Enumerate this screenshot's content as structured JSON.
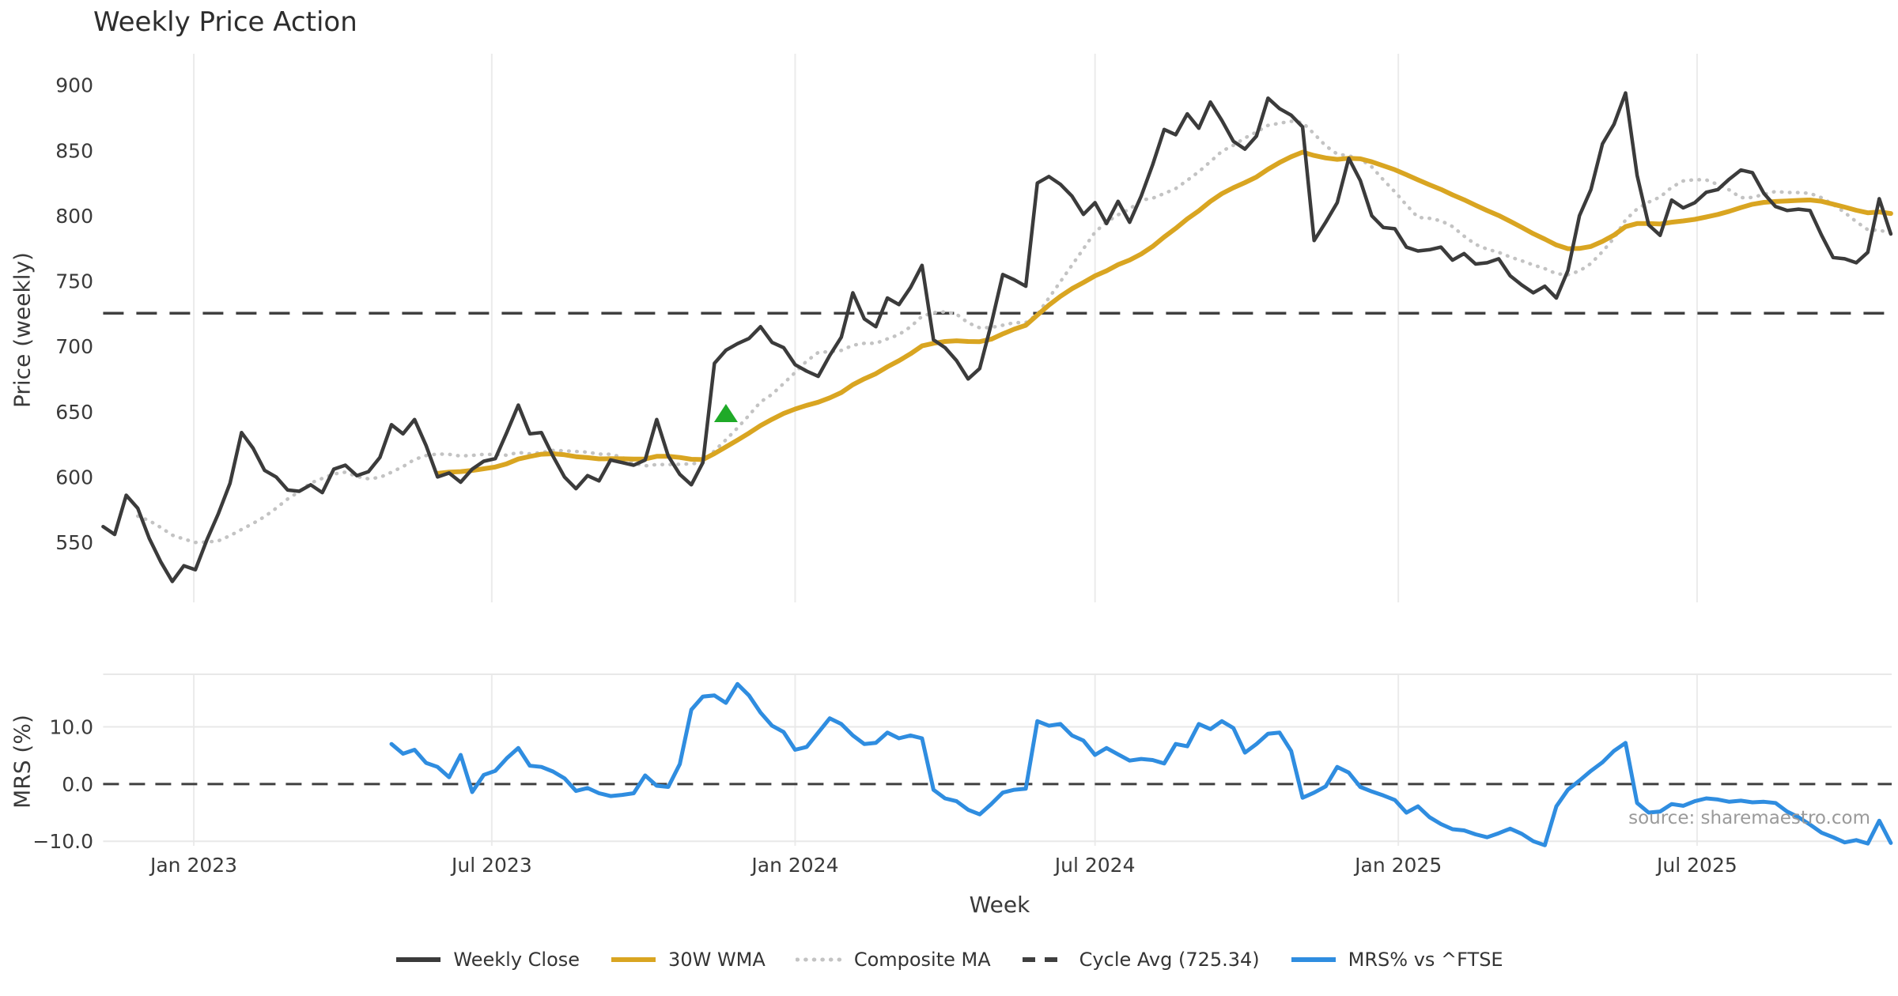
{
  "title": "Weekly Price Action",
  "source_note": "source: sharemaestro.com",
  "colors": {
    "weekly_close": "#3b3b3b",
    "wma": "#d9a521",
    "composite": "#c3c3c3",
    "cycle_avg": "#3f3f3f",
    "mrs": "#2f8de0",
    "marker": "#1faa28",
    "grid": "#ebebeb",
    "grid_soft": "#e8e8e8",
    "tick_text": "#3a3a3a"
  },
  "legend": [
    {
      "label": "Weekly Close",
      "style": "solid",
      "color": "#3b3b3b"
    },
    {
      "label": "30W WMA",
      "style": "solid",
      "color": "#d9a521"
    },
    {
      "label": "Composite MA",
      "style": "dotted",
      "color": "#c3c3c3"
    },
    {
      "label": "Cycle Avg (725.34)",
      "style": "dashed",
      "color": "#3f3f3f"
    },
    {
      "label": "MRS% vs ^FTSE",
      "style": "solid",
      "color": "#2f8de0"
    }
  ],
  "chart_data": {
    "type": "line",
    "x_axis": {
      "label": "Week",
      "unit": "week_index",
      "range": [
        0,
        155
      ],
      "ticks": [
        {
          "week": 7.86,
          "label": "Jan 2023"
        },
        {
          "week": 33.7,
          "label": "Jul 2023"
        },
        {
          "week": 60.0,
          "label": "Jan 2024"
        },
        {
          "week": 86.0,
          "label": "Jul 2024"
        },
        {
          "week": 112.3,
          "label": "Jan 2025"
        },
        {
          "week": 138.2,
          "label": "Jul 2025"
        }
      ]
    },
    "panels": [
      {
        "name": "price",
        "ylabel": "Price (weekly)",
        "ylim": [
          504,
          924
        ],
        "yticks": [
          {
            "value": 900,
            "label": "900"
          },
          {
            "value": 850,
            "label": "850"
          },
          {
            "value": 800,
            "label": "800"
          },
          {
            "value": 750,
            "label": "750"
          },
          {
            "value": 700,
            "label": "700"
          },
          {
            "value": 650,
            "label": "650"
          },
          {
            "value": 600,
            "label": "600"
          },
          {
            "value": 550,
            "label": "550"
          }
        ],
        "cycle_avg": 725.34,
        "buy_marker": {
          "week": 54,
          "value": 648,
          "shape": "triangle-up"
        },
        "weekly_close": {
          "name": "Weekly Close",
          "start_week": 0,
          "values": [
            562,
            556,
            586,
            576,
            553,
            535,
            520,
            532,
            529,
            552,
            572,
            595,
            634,
            622,
            605,
            600,
            590,
            589,
            594,
            588,
            606,
            609,
            601,
            604,
            615,
            640,
            633,
            644,
            624,
            600,
            603,
            596,
            606,
            612,
            614,
            634,
            655,
            633,
            634,
            616,
            600,
            591,
            601,
            597,
            613,
            611,
            609,
            613,
            644,
            616,
            602,
            594,
            611,
            687,
            697,
            702,
            706,
            715,
            703,
            699,
            686,
            681,
            677,
            693,
            707,
            741,
            721,
            715,
            737,
            732,
            745,
            762,
            705,
            699,
            689,
            675,
            683,
            717,
            755,
            751,
            746,
            825,
            830,
            824,
            815,
            801,
            810,
            794,
            811,
            795,
            815,
            839,
            866,
            862,
            878,
            867,
            887,
            873,
            857,
            851,
            861,
            890,
            882,
            877,
            868,
            781,
            795,
            810,
            844,
            827,
            800,
            791,
            790,
            776,
            773,
            774,
            776,
            766,
            771,
            763,
            764,
            767,
            754,
            747,
            741,
            746,
            737,
            758,
            800,
            820,
            855,
            870,
            894,
            831,
            793,
            785,
            812,
            806,
            810,
            818,
            820,
            828,
            835,
            833,
            817,
            807,
            804,
            805,
            804,
            785,
            768,
            767,
            764,
            772,
            813,
            786
          ]
        },
        "wma_30w": {
          "name": "30W WMA",
          "derived_from": "weekly_close",
          "method": "30-week linearly weighted moving average",
          "window": 30
        },
        "composite_ma": {
          "name": "Composite MA",
          "derived_from": "weekly_close",
          "method": "10-week moving average",
          "window": 10
        }
      },
      {
        "name": "mrs",
        "ylabel": "MRS (%)",
        "ylim": [
          -10.8,
          19.2
        ],
        "yticks": [
          {
            "value": 10,
            "label": "10.0"
          },
          {
            "value": 0,
            "label": "0.0"
          },
          {
            "value": -10,
            "label": "−10.0"
          }
        ],
        "zero_line_dashed": true,
        "mrs_series": {
          "name": "MRS% vs ^FTSE",
          "start_week": 25,
          "values": [
            7.0,
            5.3,
            6.0,
            3.7,
            3.0,
            1.2,
            5.1,
            -1.4,
            1.6,
            2.3,
            4.5,
            6.3,
            3.2,
            3.0,
            2.2,
            1.0,
            -1.2,
            -0.7,
            -1.6,
            -2.1,
            -1.9,
            -1.6,
            1.5,
            -0.3,
            -0.5,
            3.5,
            13.0,
            15.3,
            15.5,
            14.2,
            17.5,
            15.5,
            12.5,
            10.2,
            9.1,
            6.0,
            6.5,
            9.0,
            11.5,
            10.5,
            8.5,
            7.0,
            7.2,
            9.0,
            8.0,
            8.5,
            8.0,
            -1.0,
            -2.5,
            -3.0,
            -4.5,
            -5.3,
            -3.5,
            -1.5,
            -1.0,
            -0.8,
            11.0,
            10.2,
            10.5,
            8.5,
            7.6,
            5.1,
            6.3,
            5.2,
            4.1,
            4.4,
            4.2,
            3.6,
            7.0,
            6.6,
            10.5,
            9.6,
            11.0,
            9.8,
            5.5,
            7.0,
            8.8,
            9.0,
            5.8,
            -2.4,
            -1.5,
            -0.4,
            3.0,
            2.0,
            -0.5,
            -1.3,
            -2.0,
            -2.8,
            -5.0,
            -3.9,
            -5.8,
            -7.0,
            -7.9,
            -8.1,
            -8.8,
            -9.3,
            -8.6,
            -7.8,
            -8.7,
            -10.0,
            -10.7,
            -3.9,
            -1.0,
            0.6,
            2.3,
            3.8,
            5.8,
            7.2,
            -3.3,
            -5.0,
            -4.8,
            -3.5,
            -3.8,
            -3.0,
            -2.5,
            -2.7,
            -3.1,
            -2.9,
            -3.2,
            -3.1,
            -3.3,
            -4.8,
            -5.8,
            -7.1,
            -8.5,
            -9.3,
            -10.2,
            -9.8,
            -10.4,
            -6.4,
            -10.3
          ]
        }
      }
    ]
  }
}
